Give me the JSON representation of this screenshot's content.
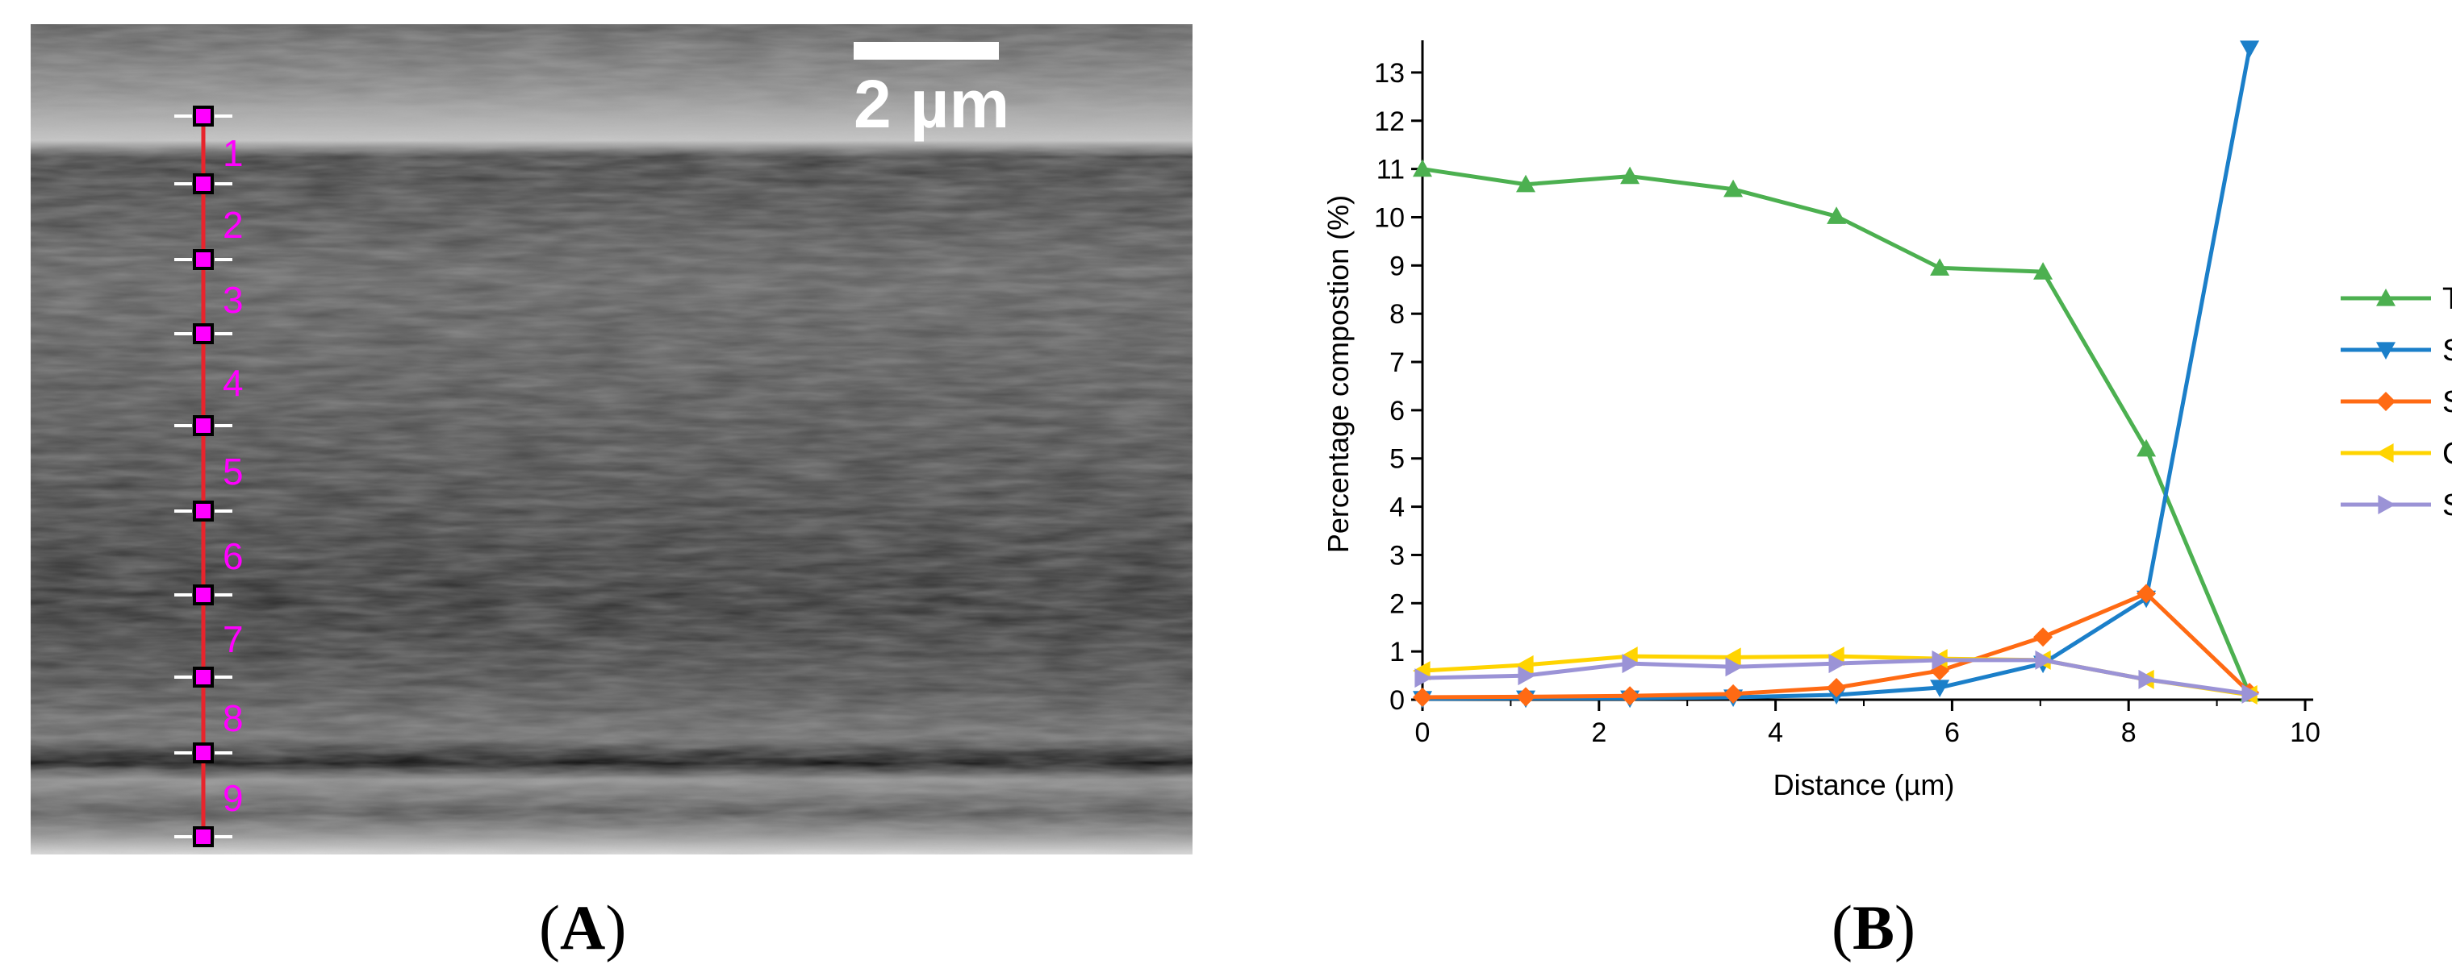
{
  "panels": {
    "a_label": "A",
    "b_label": "B"
  },
  "sem": {
    "scale_bar_label": "2 µm",
    "marker_color": "#ff00ff",
    "line_color": "#e8242c",
    "point_labels": [
      "1",
      "2",
      "3",
      "4",
      "5",
      "6",
      "7",
      "8",
      "9"
    ]
  },
  "chart_data": {
    "type": "line",
    "xlabel": "Distance (µm)",
    "ylabel": "Percentage compostion (%)",
    "xlim": [
      0,
      10
    ],
    "ylim": [
      0,
      13.5
    ],
    "xticks": [
      0,
      2,
      4,
      6,
      8,
      10
    ],
    "yticks": [
      0,
      1,
      2,
      3,
      4,
      5,
      6,
      7,
      8,
      9,
      10,
      11,
      12,
      13
    ],
    "grid": false,
    "legend_position": "right",
    "series": [
      {
        "name": "Ti",
        "color": "#4cb050",
        "marker": "triangle-up",
        "x": [
          0,
          1.17,
          2.35,
          3.52,
          4.69,
          5.86,
          7.03,
          8.2,
          9.37
        ],
        "y": [
          11.0,
          10.68,
          10.85,
          10.58,
          10.02,
          8.95,
          8.87,
          5.2,
          0.12
        ]
      },
      {
        "name": "Si",
        "color": "#1b7fc9",
        "marker": "triangle-down",
        "x": [
          0,
          1.17,
          2.35,
          3.52,
          4.69,
          5.86,
          7.03,
          8.2,
          9.37
        ],
        "y": [
          0.02,
          0.03,
          0.03,
          0.05,
          0.1,
          0.25,
          0.75,
          2.1,
          13.5
        ]
      },
      {
        "name": "Sn",
        "color": "#ff6a13",
        "marker": "diamond",
        "x": [
          0,
          1.17,
          2.35,
          3.52,
          4.69,
          5.86,
          7.03,
          8.2,
          9.37
        ],
        "y": [
          0.05,
          0.06,
          0.08,
          0.12,
          0.25,
          0.6,
          1.3,
          2.2,
          0.15
        ]
      },
      {
        "name": "Cd",
        "color": "#ffd400",
        "marker": "triangle-left",
        "x": [
          0,
          1.17,
          2.35,
          3.52,
          4.69,
          5.86,
          7.03,
          8.2,
          9.37
        ],
        "y": [
          0.6,
          0.72,
          0.9,
          0.88,
          0.9,
          0.85,
          0.82,
          0.42,
          0.1
        ]
      },
      {
        "name": "Se",
        "color": "#9b93d6",
        "marker": "triangle-right",
        "x": [
          0,
          1.17,
          2.35,
          3.52,
          4.69,
          5.86,
          7.03,
          8.2,
          9.37
        ],
        "y": [
          0.45,
          0.5,
          0.75,
          0.68,
          0.75,
          0.82,
          0.82,
          0.42,
          0.12
        ]
      }
    ]
  }
}
